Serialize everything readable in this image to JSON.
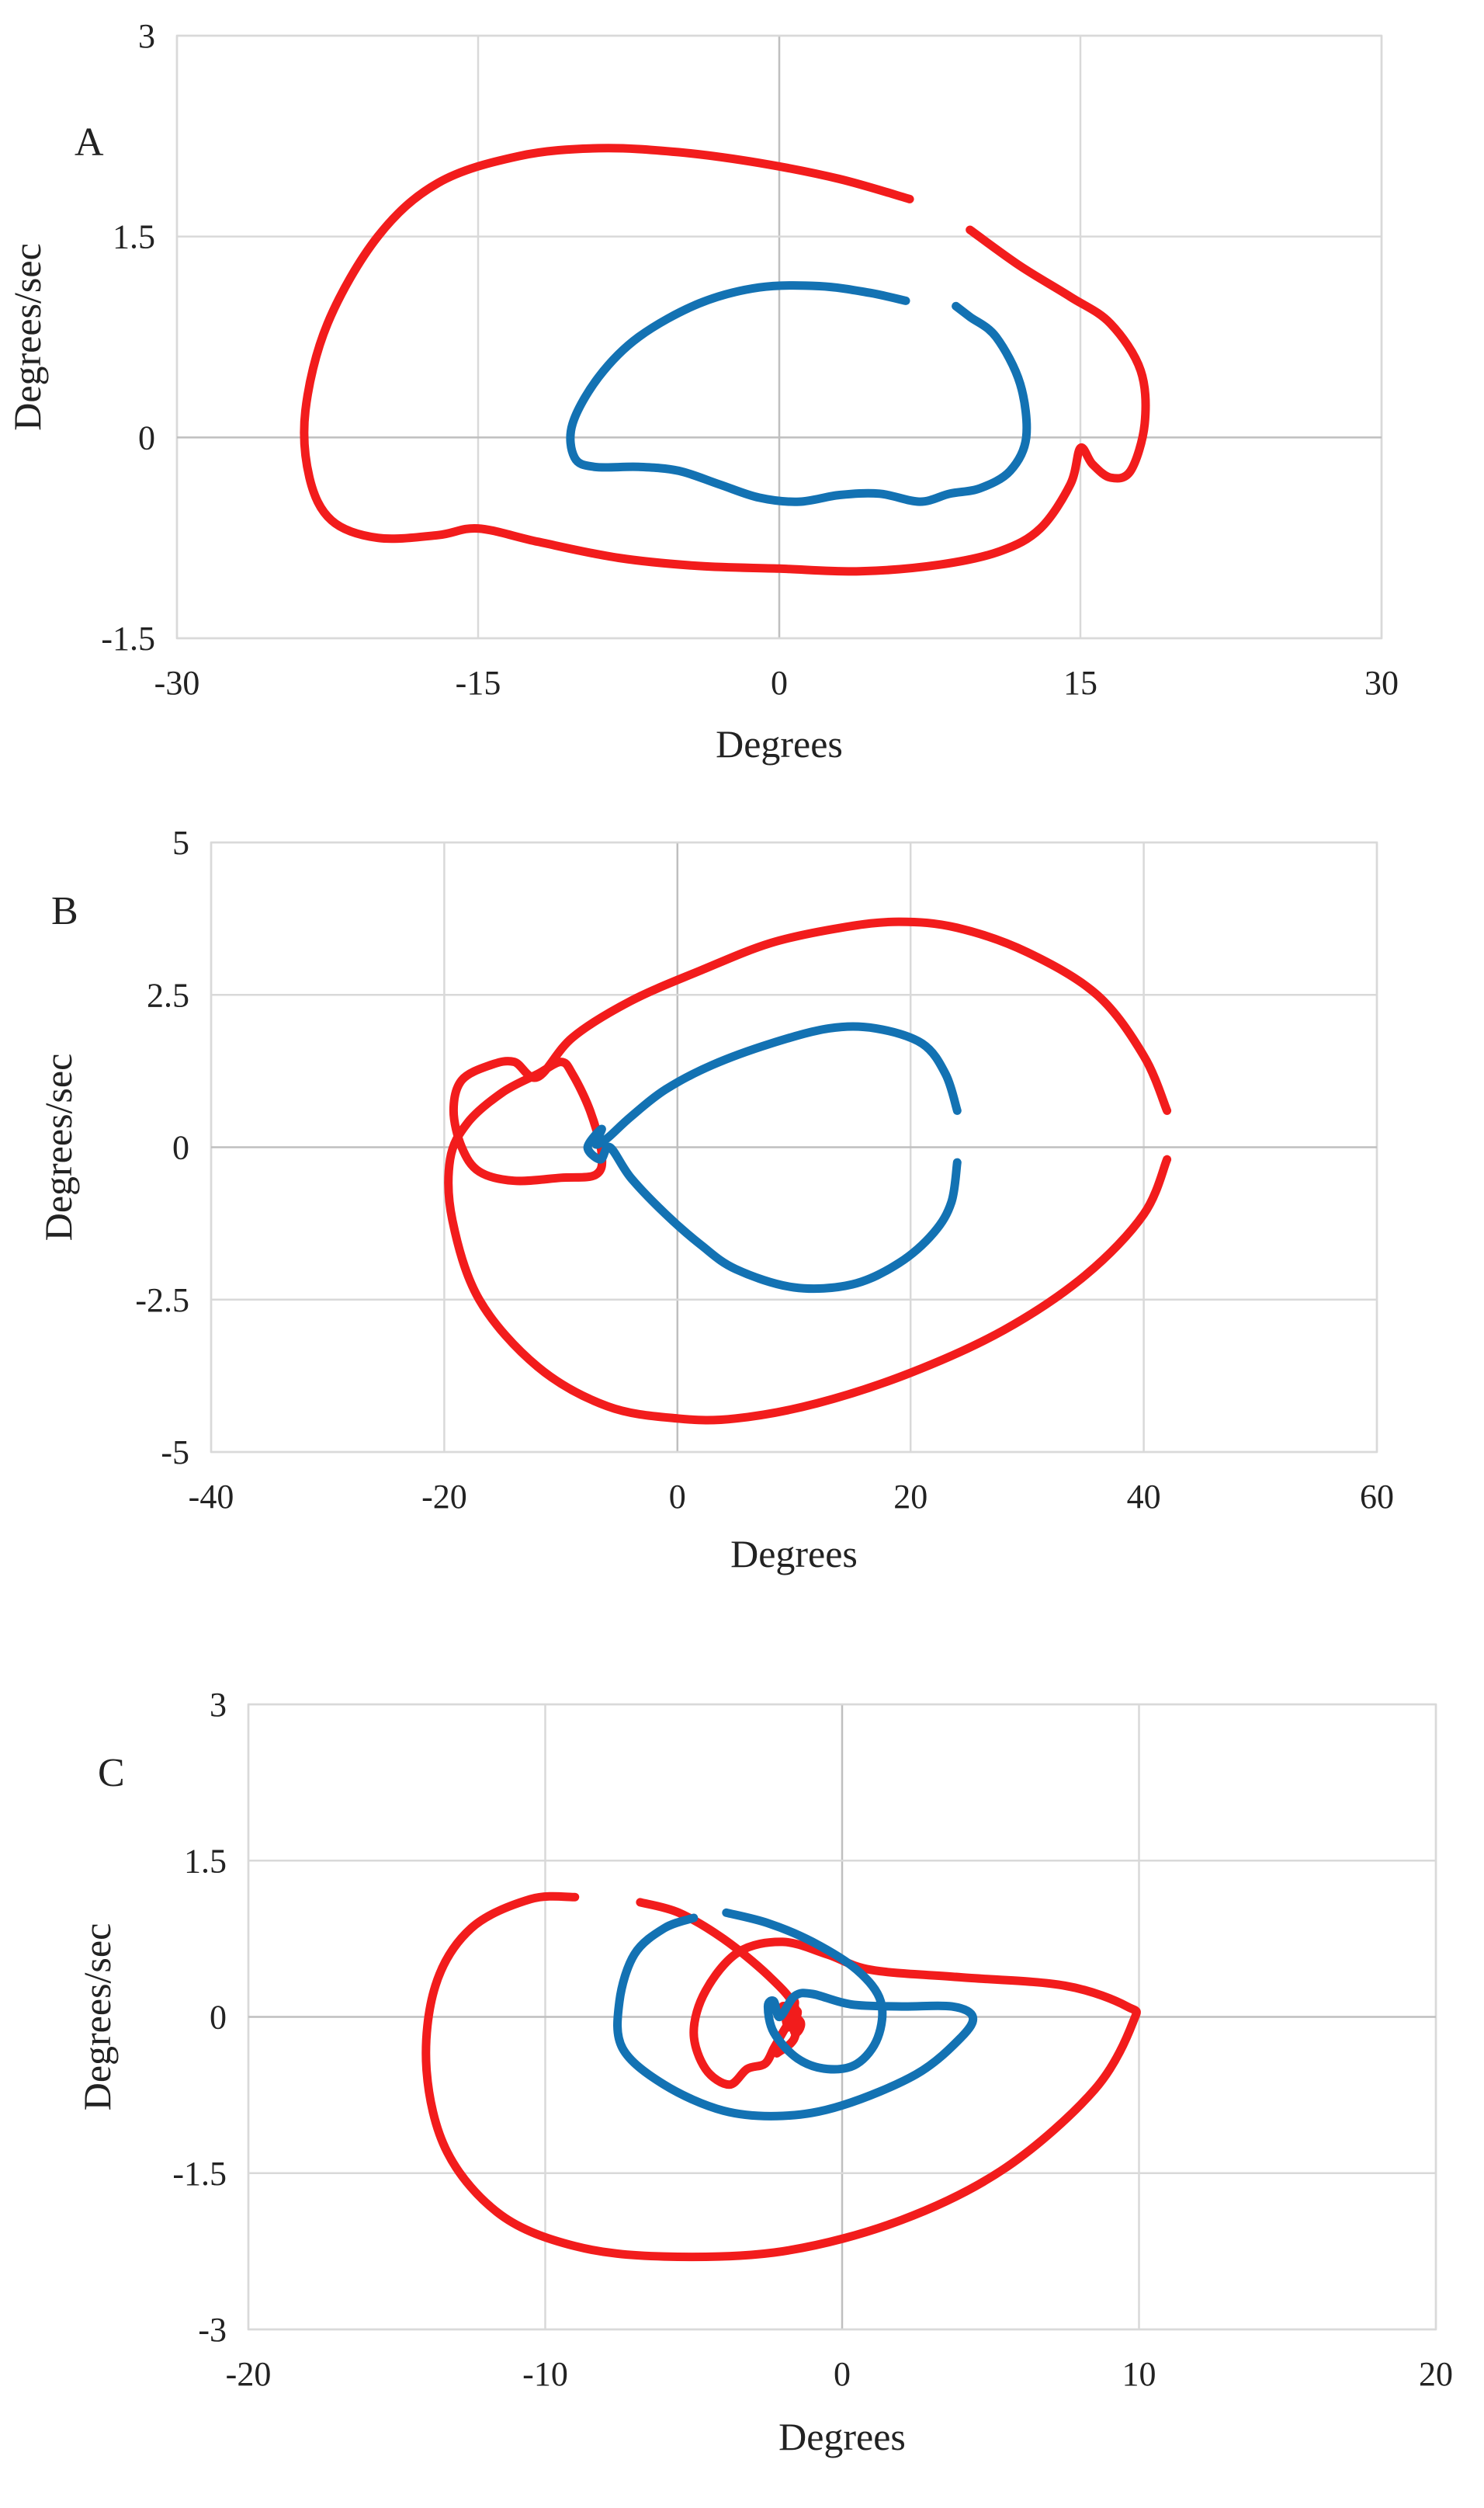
{
  "colors": {
    "red": "#f21c1c",
    "blue": "#1372b3",
    "grid": "#d9d9d9",
    "text": "#222222"
  },
  "chart_data": [
    {
      "type": "line",
      "panel_label": "A",
      "xlabel": "Degrees",
      "ylabel": "Degrees/sec",
      "xlim": [
        -30,
        30
      ],
      "ylim": [
        -1.5,
        3
      ],
      "xticks": [
        -30,
        -15,
        0,
        15,
        30
      ],
      "xtick_labels": [
        "-30",
        "-15",
        "0",
        "15",
        "30"
      ],
      "yticks": [
        -1.5,
        0,
        1.5,
        3
      ],
      "ytick_labels": [
        "-1.5",
        "0",
        "1.5",
        "3"
      ],
      "grid": true,
      "series": [
        {
          "color": "red",
          "segments": [
            [
              [
                6.5,
                1.78
              ],
              [
                3,
                1.93
              ],
              [
                -1,
                2.05
              ],
              [
                -5,
                2.13
              ],
              [
                -9,
                2.16
              ],
              [
                -13,
                2.1
              ],
              [
                -17,
                1.9
              ],
              [
                -20,
                1.5
              ],
              [
                -22.5,
                0.85
              ],
              [
                -23.6,
                0.2
              ],
              [
                -23.4,
                -0.3
              ],
              [
                -22.3,
                -0.62
              ],
              [
                -20,
                -0.75
              ],
              [
                -17,
                -0.73
              ],
              [
                -15,
                -0.68
              ],
              [
                -12,
                -0.78
              ],
              [
                -8,
                -0.9
              ],
              [
                -4,
                -0.96
              ],
              [
                0,
                -0.98
              ],
              [
                4,
                -1.0
              ],
              [
                8,
                -0.95
              ],
              [
                11,
                -0.85
              ],
              [
                13,
                -0.68
              ],
              [
                14.5,
                -0.35
              ],
              [
                15,
                -0.08
              ],
              [
                15.6,
                -0.2
              ],
              [
                16.5,
                -0.3
              ],
              [
                17.5,
                -0.25
              ],
              [
                18.2,
                0.1
              ],
              [
                18,
                0.5
              ],
              [
                16.5,
                0.85
              ],
              [
                14.5,
                1.05
              ],
              [
                12,
                1.28
              ],
              [
                9.5,
                1.55
              ]
            ]
          ]
        },
        {
          "color": "blue",
          "segments": [
            [
              [
                6.3,
                1.02
              ],
              [
                4.5,
                1.08
              ],
              [
                2,
                1.13
              ],
              [
                -1,
                1.12
              ],
              [
                -4,
                1.0
              ],
              [
                -7,
                0.75
              ],
              [
                -9,
                0.45
              ],
              [
                -10.3,
                0.1
              ],
              [
                -10.2,
                -0.15
              ],
              [
                -9.2,
                -0.22
              ],
              [
                -7,
                -0.22
              ],
              [
                -5,
                -0.25
              ],
              [
                -3,
                -0.35
              ],
              [
                -1,
                -0.45
              ],
              [
                1,
                -0.48
              ],
              [
                3,
                -0.43
              ],
              [
                5,
                -0.42
              ],
              [
                7,
                -0.48
              ],
              [
                8.5,
                -0.42
              ],
              [
                10,
                -0.38
              ],
              [
                11.5,
                -0.25
              ],
              [
                12.3,
                0.0
              ],
              [
                12,
                0.4
              ],
              [
                10.8,
                0.75
              ],
              [
                9.5,
                0.9
              ],
              [
                8.8,
                0.98
              ]
            ]
          ]
        }
      ]
    },
    {
      "type": "line",
      "panel_label": "B",
      "xlabel": "Degrees",
      "ylabel": "Degrees/sec",
      "xlim": [
        -40,
        60
      ],
      "ylim": [
        -5,
        5
      ],
      "xticks": [
        -40,
        -20,
        0,
        20,
        40,
        60
      ],
      "xtick_labels": [
        "-40",
        "-20",
        "0",
        "20",
        "40",
        "60"
      ],
      "yticks": [
        -5,
        -2.5,
        0,
        2.5,
        5
      ],
      "ytick_labels": [
        "-5",
        "-2.5",
        "0",
        "2.5",
        "5"
      ],
      "grid": true,
      "series": [
        {
          "color": "red",
          "segments": [
            [
              [
                42,
                0.6
              ],
              [
                40,
                1.5
              ],
              [
                36,
                2.5
              ],
              [
                30,
                3.2
              ],
              [
                24,
                3.6
              ],
              [
                19,
                3.7
              ],
              [
                14,
                3.6
              ],
              [
                8,
                3.35
              ],
              [
                2,
                2.9
              ],
              [
                -4,
                2.4
              ],
              [
                -9,
                1.8
              ],
              [
                -12,
                1.15
              ],
              [
                -14,
                1.4
              ],
              [
                -16,
                1.35
              ],
              [
                -18.5,
                1.1
              ],
              [
                -19.2,
                0.6
              ],
              [
                -18.5,
                0.0
              ],
              [
                -17,
                -0.4
              ],
              [
                -14,
                -0.55
              ],
              [
                -10,
                -0.5
              ],
              [
                -7,
                -0.45
              ],
              [
                -6.5,
                -0.1
              ],
              [
                -7.5,
                0.6
              ],
              [
                -9,
                1.2
              ],
              [
                -10,
                1.4
              ],
              [
                -12,
                1.2
              ],
              [
                -15,
                0.9
              ],
              [
                -18,
                0.4
              ],
              [
                -19.5,
                -0.2
              ],
              [
                -19.3,
                -1.2
              ],
              [
                -17,
                -2.5
              ],
              [
                -12,
                -3.6
              ],
              [
                -6,
                -4.25
              ],
              [
                0,
                -4.45
              ],
              [
                5,
                -4.45
              ],
              [
                12,
                -4.2
              ],
              [
                20,
                -3.7
              ],
              [
                28,
                -3.0
              ],
              [
                35,
                -2.1
              ],
              [
                40,
                -1.1
              ],
              [
                42,
                -0.2
              ]
            ]
          ]
        },
        {
          "color": "blue",
          "segments": [
            [
              [
                24,
                0.6
              ],
              [
                23,
                1.2
              ],
              [
                21,
                1.7
              ],
              [
                17,
                1.95
              ],
              [
                13,
                1.95
              ],
              [
                8,
                1.7
              ],
              [
                3,
                1.35
              ],
              [
                -1,
                0.95
              ],
              [
                -4,
                0.5
              ],
              [
                -6,
                0.15
              ],
              [
                -7,
                0.05
              ],
              [
                -6.5,
                0.3
              ],
              [
                -7.7,
                0.0
              ],
              [
                -6.6,
                -0.2
              ],
              [
                -5.8,
                0.0
              ],
              [
                -4,
                -0.5
              ],
              [
                -1,
                -1.1
              ],
              [
                2,
                -1.6
              ],
              [
                5,
                -2.0
              ],
              [
                10,
                -2.3
              ],
              [
                15,
                -2.25
              ],
              [
                19,
                -1.9
              ],
              [
                22,
                -1.4
              ],
              [
                23.5,
                -0.9
              ],
              [
                24,
                -0.25
              ]
            ]
          ]
        }
      ]
    },
    {
      "type": "line",
      "panel_label": "C",
      "xlabel": "Degrees",
      "ylabel": "Degrees/sec",
      "xlim": [
        -20,
        20
      ],
      "ylim": [
        -3,
        3
      ],
      "xticks": [
        -20,
        -10,
        0,
        10,
        20
      ],
      "xtick_labels": [
        "-20",
        "-10",
        "0",
        "10",
        "20"
      ],
      "yticks": [
        -3,
        -1.5,
        0,
        1.5,
        3
      ],
      "ytick_labels": [
        "-3",
        "-1.5",
        "0",
        "1.5",
        "3"
      ],
      "grid": true,
      "series": [
        {
          "color": "red",
          "segments": [
            [
              [
                -9,
                1.15
              ],
              [
                -10.5,
                1.13
              ],
              [
                -12.5,
                0.85
              ],
              [
                -13.7,
                0.3
              ],
              [
                -14,
                -0.5
              ],
              [
                -13.3,
                -1.3
              ],
              [
                -11.5,
                -1.9
              ],
              [
                -9,
                -2.2
              ],
              [
                -6,
                -2.3
              ],
              [
                -2,
                -2.25
              ],
              [
                2,
                -1.95
              ],
              [
                5.5,
                -1.45
              ],
              [
                8.5,
                -0.7
              ],
              [
                9.8,
                -0.05
              ],
              [
                9.6,
                0.1
              ],
              [
                7.5,
                0.3
              ],
              [
                4,
                0.38
              ],
              [
                1,
                0.45
              ],
              [
                -0.5,
                0.6
              ],
              [
                -2,
                0.72
              ],
              [
                -3.5,
                0.62
              ],
              [
                -4.6,
                0.25
              ],
              [
                -5,
                -0.15
              ],
              [
                -4.6,
                -0.5
              ],
              [
                -3.8,
                -0.65
              ],
              [
                -3.2,
                -0.5
              ],
              [
                -2.6,
                -0.45
              ],
              [
                -2.3,
                -0.3
              ],
              [
                -2,
                -0.15
              ],
              [
                -1.7,
                0.0
              ],
              [
                -1.6,
                0.15
              ],
              [
                -1.9,
                0.05
              ],
              [
                -1.8,
                -0.1
              ],
              [
                -1.5,
                0.05
              ],
              [
                -2.0,
                0.1
              ],
              [
                -1.4,
                -0.05
              ],
              [
                -1.6,
                -0.15
              ],
              [
                -1.8,
                0.12
              ]
            ],
            [
              [
                -6.8,
                1.1
              ],
              [
                -5.5,
                1.0
              ],
              [
                -4,
                0.75
              ],
              [
                -2.5,
                0.4
              ],
              [
                -1.6,
                0.1
              ],
              [
                -1.6,
                -0.2
              ],
              [
                -2.2,
                -0.35
              ]
            ]
          ]
        },
        {
          "color": "blue",
          "segments": [
            [
              [
                -3.9,
                1.0
              ],
              [
                -2.5,
                0.9
              ],
              [
                -1,
                0.72
              ],
              [
                0.5,
                0.45
              ],
              [
                1.3,
                0.15
              ],
              [
                1.2,
                -0.2
              ],
              [
                0.5,
                -0.45
              ],
              [
                -0.5,
                -0.5
              ],
              [
                -1.5,
                -0.4
              ],
              [
                -2.3,
                -0.15
              ],
              [
                -2.5,
                0.1
              ],
              [
                -2.3,
                0.15
              ],
              [
                -2.1,
                0.0
              ],
              [
                -1.6,
                0.2
              ],
              [
                -1,
                0.22
              ],
              [
                0.3,
                0.12
              ],
              [
                2,
                0.1
              ],
              [
                3.7,
                0.1
              ],
              [
                4.4,
                0.0
              ],
              [
                4,
                -0.2
              ],
              [
                2.5,
                -0.55
              ],
              [
                0,
                -0.85
              ],
              [
                -2,
                -0.95
              ],
              [
                -4,
                -0.9
              ],
              [
                -6,
                -0.65
              ],
              [
                -7.4,
                -0.3
              ],
              [
                -7.5,
                0.15
              ],
              [
                -7,
                0.6
              ],
              [
                -6,
                0.85
              ],
              [
                -5,
                0.95
              ]
            ]
          ]
        }
      ]
    }
  ]
}
